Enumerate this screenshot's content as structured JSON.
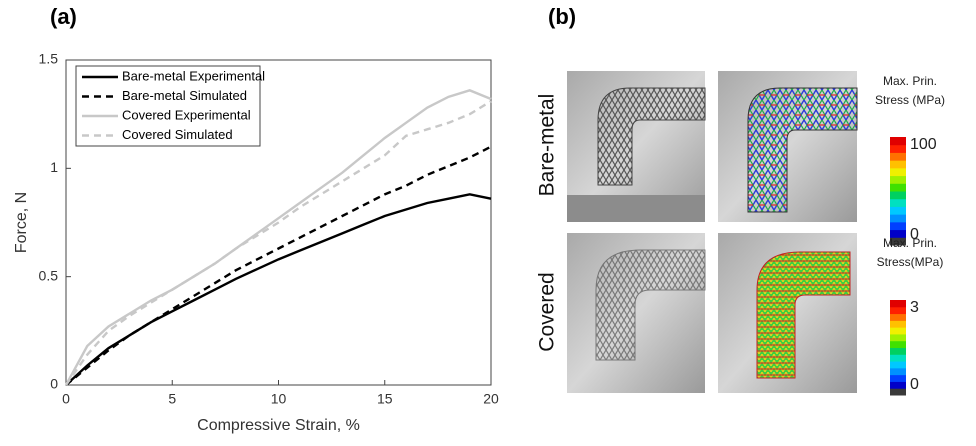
{
  "chart_data": {
    "type": "line",
    "panel_label": "(a)",
    "x_label": "Compressive Strain, %",
    "y_label": "Force, N",
    "x": [
      0,
      1,
      2,
      3,
      4,
      5,
      6,
      7,
      8,
      9,
      10,
      11,
      12,
      13,
      14,
      15,
      16,
      17,
      18,
      19,
      20
    ],
    "series": [
      {
        "name": "Bare-metal Experimental",
        "color": "#000000",
        "dash": false,
        "values": [
          0,
          0.09,
          0.17,
          0.23,
          0.29,
          0.34,
          0.39,
          0.44,
          0.49,
          0.535,
          0.58,
          0.62,
          0.66,
          0.7,
          0.74,
          0.78,
          0.81,
          0.84,
          0.86,
          0.88,
          0.86
        ]
      },
      {
        "name": "Bare-metal Simulated",
        "color": "#000000",
        "dash": true,
        "values": [
          0,
          0.08,
          0.16,
          0.23,
          0.29,
          0.35,
          0.41,
          0.47,
          0.53,
          0.58,
          0.63,
          0.68,
          0.73,
          0.78,
          0.83,
          0.88,
          0.92,
          0.97,
          1.01,
          1.05,
          1.1
        ]
      },
      {
        "name": "Covered Experimental",
        "color": "#c8c8c8",
        "dash": false,
        "values": [
          0,
          0.18,
          0.27,
          0.33,
          0.39,
          0.44,
          0.5,
          0.56,
          0.63,
          0.7,
          0.77,
          0.84,
          0.91,
          0.98,
          1.06,
          1.14,
          1.21,
          1.28,
          1.33,
          1.36,
          1.32
        ]
      },
      {
        "name": "Covered Simulated",
        "color": "#c8c8c8",
        "dash": true,
        "values": [
          0,
          0.14,
          0.25,
          0.32,
          0.38,
          0.44,
          0.5,
          0.56,
          0.63,
          0.69,
          0.75,
          0.82,
          0.88,
          0.94,
          1.0,
          1.06,
          1.15,
          1.18,
          1.21,
          1.25,
          1.31
        ]
      }
    ],
    "xlim": [
      0,
      20
    ],
    "ylim": [
      0,
      1.5
    ],
    "xticks": [
      0,
      5,
      10,
      15,
      20
    ],
    "yticks": [
      0,
      0.5,
      1,
      1.5
    ],
    "legend": "upper left"
  },
  "panel_b": {
    "panel_label": "(b)",
    "rows": [
      {
        "label": "Bare-metal",
        "colorbar_title": [
          "Max. Prin.",
          "Stress (MPa)"
        ],
        "colorbar_ticks": [
          100,
          0
        ]
      },
      {
        "label": "Covered",
        "colorbar_title": [
          "Max. Prin.",
          "Stress(MPa)"
        ],
        "colorbar_ticks": [
          3,
          0
        ]
      }
    ]
  }
}
